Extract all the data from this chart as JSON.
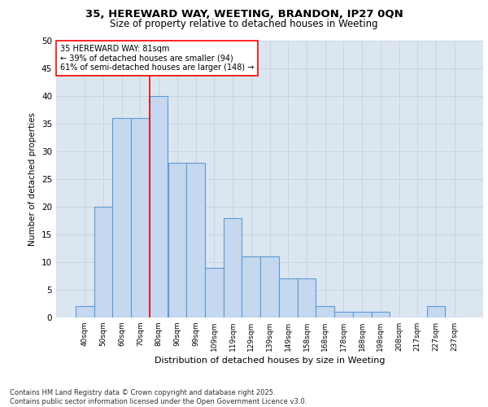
{
  "title1": "35, HEREWARD WAY, WEETING, BRANDON, IP27 0QN",
  "title2": "Size of property relative to detached houses in Weeting",
  "xlabel": "Distribution of detached houses by size in Weeting",
  "ylabel": "Number of detached properties",
  "categories": [
    "40sqm",
    "50sqm",
    "60sqm",
    "70sqm",
    "80sqm",
    "90sqm",
    "99sqm",
    "109sqm",
    "119sqm",
    "129sqm",
    "139sqm",
    "149sqm",
    "158sqm",
    "168sqm",
    "178sqm",
    "188sqm",
    "198sqm",
    "208sqm",
    "217sqm",
    "227sqm",
    "237sqm"
  ],
  "values": [
    2,
    20,
    36,
    36,
    40,
    28,
    28,
    9,
    18,
    11,
    11,
    7,
    7,
    2,
    1,
    1,
    1,
    0,
    0,
    2,
    0
  ],
  "bar_color": "#c5d8f0",
  "bar_edge_color": "#5b9bd5",
  "bar_edge_width": 0.8,
  "grid_color": "#c8d4e3",
  "background_color": "#dce6f1",
  "redline_index": 4,
  "annotation_line1": "35 HEREWARD WAY: 81sqm",
  "annotation_line2": "← 39% of detached houses are smaller (94)",
  "annotation_line3": "61% of semi-detached houses are larger (148) →",
  "annotation_box_color": "white",
  "annotation_box_edge": "red",
  "annotation_text_size": 7.0,
  "redline_color": "red",
  "ylim": [
    0,
    50
  ],
  "yticks": [
    0,
    5,
    10,
    15,
    20,
    25,
    30,
    35,
    40,
    45,
    50
  ],
  "footer1": "Contains HM Land Registry data © Crown copyright and database right 2025.",
  "footer2": "Contains public sector information licensed under the Open Government Licence v3.0."
}
